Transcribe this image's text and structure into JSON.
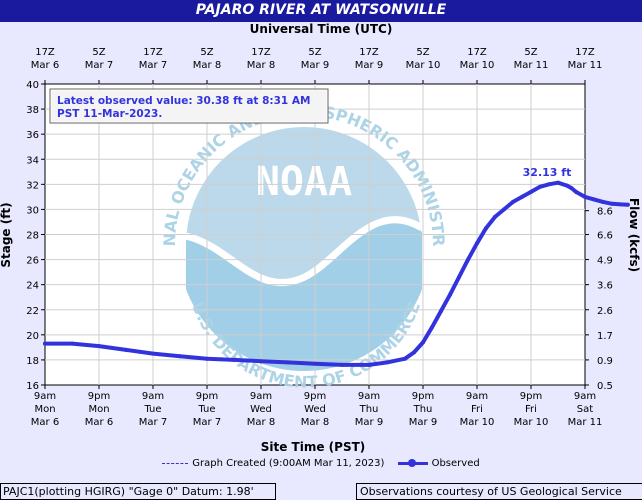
{
  "header": {
    "title": "PAJARO RIVER AT WATSONVILLE",
    "top_axis_label": "Universal Time (UTC)"
  },
  "annotation": {
    "latest_line1": "Latest observed value: 30.38 ft at 8:31 AM",
    "latest_line2": "PST 11-Mar-2023.",
    "peak_label": "32.13 ft"
  },
  "watermark": {
    "logo_text": "NOAA",
    "ring_text_top": "NATIONAL OCEANIC AND ATMOSPHERIC ADMINISTRATION",
    "ring_text_bottom": "U.S. DEPARTMENT OF COMMERCE"
  },
  "legend": {
    "graph_created": "Graph Created (9:00AM Mar 11, 2023)",
    "observed": "Observed"
  },
  "footer": {
    "left": "PAJC1(plotting HGIRG) \"Gage 0\" Datum: 1.98'",
    "right": "Observations courtesy of US Geological Service"
  },
  "colors": {
    "title_bg": "#1a1a9e",
    "background": "#e8e8ff",
    "plot_bg": "#ffffff",
    "series": "#3333dd",
    "watermark": "#a9d1e6"
  },
  "chart_data": {
    "type": "line",
    "title": "PAJARO RIVER AT WATSONVILLE",
    "xlabel": "Site Time (PST)",
    "xlabel_top": "Universal Time (UTC)",
    "ylabel": "Stage (ft)",
    "ylabel_right": "Flow (kcfs)",
    "ylim": [
      16,
      40
    ],
    "y_ticks": [
      16,
      18,
      20,
      22,
      24,
      26,
      28,
      30,
      32,
      34,
      36,
      38,
      40
    ],
    "grid": true,
    "legend_position": "bottom",
    "x_ticks_bottom": [
      [
        "9am",
        "Mon",
        "Mar 6"
      ],
      [
        "9pm",
        "Mon",
        "Mar 6"
      ],
      [
        "9am",
        "Tue",
        "Mar 7"
      ],
      [
        "9pm",
        "Tue",
        "Mar 7"
      ],
      [
        "9am",
        "Wed",
        "Mar 8"
      ],
      [
        "9pm",
        "Wed",
        "Mar 8"
      ],
      [
        "9am",
        "Thu",
        "Mar 9"
      ],
      [
        "9pm",
        "Thu",
        "Mar 9"
      ],
      [
        "9am",
        "Fri",
        "Mar 10"
      ],
      [
        "9pm",
        "Fri",
        "Mar 10"
      ],
      [
        "9am",
        "Sat",
        "Mar 11"
      ]
    ],
    "x_ticks_top": [
      [
        "17Z",
        "Mar 6"
      ],
      [
        "5Z",
        "Mar 7"
      ],
      [
        "17Z",
        "Mar 7"
      ],
      [
        "5Z",
        "Mar 8"
      ],
      [
        "17Z",
        "Mar 8"
      ],
      [
        "5Z",
        "Mar 9"
      ],
      [
        "17Z",
        "Mar 9"
      ],
      [
        "5Z",
        "Mar 10"
      ],
      [
        "17Z",
        "Mar 10"
      ],
      [
        "5Z",
        "Mar 11"
      ],
      [
        "17Z",
        "Mar 11"
      ]
    ],
    "flow_ticks": [
      {
        "label": "8.6",
        "stage": 29.9
      },
      {
        "label": "6.6",
        "stage": 28.0
      },
      {
        "label": "4.9",
        "stage": 26.0
      },
      {
        "label": "3.6",
        "stage": 24.0
      },
      {
        "label": "2.6",
        "stage": 22.0
      },
      {
        "label": "1.7",
        "stage": 20.0
      },
      {
        "label": "0.9",
        "stage": 18.0
      },
      {
        "label": "0.5",
        "stage": 16.0
      }
    ],
    "series": [
      {
        "name": "Observed",
        "x_hours_from_start": [
          0,
          6,
          12,
          18,
          24,
          30,
          36,
          42,
          48,
          54,
          60,
          66,
          72,
          76,
          80,
          82,
          84,
          86,
          88,
          90,
          92,
          94,
          96,
          98,
          100,
          102,
          104,
          106,
          108,
          110,
          112,
          114,
          116,
          117,
          118,
          120,
          122,
          124,
          126,
          128,
          129.5
        ],
        "values": [
          19.3,
          19.3,
          19.1,
          18.8,
          18.5,
          18.3,
          18.1,
          18.0,
          17.9,
          17.8,
          17.7,
          17.6,
          17.6,
          17.8,
          18.1,
          18.6,
          19.4,
          20.6,
          21.9,
          23.2,
          24.6,
          26.0,
          27.3,
          28.5,
          29.4,
          30.0,
          30.6,
          31.0,
          31.4,
          31.8,
          32.0,
          32.13,
          31.9,
          31.7,
          31.4,
          31.0,
          30.8,
          30.6,
          30.45,
          30.4,
          30.38
        ]
      }
    ]
  }
}
